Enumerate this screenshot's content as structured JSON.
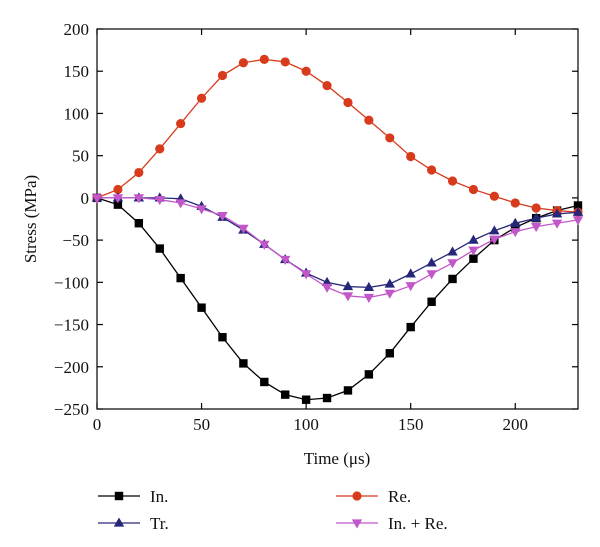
{
  "chart_data": {
    "type": "line",
    "xlabel": "Time (μs)",
    "ylabel": "Stress (MPa)",
    "xlim": [
      0,
      230
    ],
    "ylim": [
      -250,
      200
    ],
    "xticks": [
      0,
      50,
      100,
      150,
      200
    ],
    "yticks": [
      200,
      150,
      100,
      50,
      0,
      -50,
      -100,
      -150,
      -200,
      -250
    ],
    "grid": false,
    "legend_position": "bottom",
    "series": [
      {
        "name": "In.",
        "color": "#000000",
        "marker": "square",
        "x": [
          0,
          10,
          20,
          30,
          40,
          50,
          60,
          70,
          80,
          90,
          100,
          110,
          120,
          130,
          140,
          150,
          160,
          170,
          180,
          190,
          200,
          210,
          220,
          230
        ],
        "y": [
          0,
          -8,
          -30,
          -60,
          -95,
          -130,
          -165,
          -196,
          -218,
          -233,
          -239,
          -237,
          -228,
          -209,
          -184,
          -153,
          -123,
          -96,
          -72,
          -50,
          -35,
          -24,
          -15,
          -9
        ]
      },
      {
        "name": "Re.",
        "color": "#d83a1c",
        "marker": "circle",
        "x": [
          0,
          10,
          20,
          30,
          40,
          50,
          60,
          70,
          80,
          90,
          100,
          110,
          120,
          130,
          140,
          150,
          160,
          170,
          180,
          190,
          200,
          210,
          220,
          230
        ],
        "y": [
          0,
          10,
          30,
          58,
          88,
          118,
          145,
          160,
          164,
          161,
          150,
          133,
          113,
          92,
          71,
          49,
          33,
          20,
          10,
          2,
          -6,
          -12,
          -15,
          -17
        ]
      },
      {
        "name": "Tr.",
        "color": "#27277a",
        "marker": "triangle-up",
        "x": [
          0,
          10,
          20,
          30,
          40,
          50,
          60,
          70,
          80,
          90,
          100,
          110,
          120,
          130,
          140,
          150,
          160,
          170,
          180,
          190,
          200,
          210,
          220,
          230
        ],
        "y": [
          0,
          0,
          0,
          0,
          -1,
          -10,
          -23,
          -38,
          -55,
          -73,
          -89,
          -100,
          -105,
          -106,
          -102,
          -90,
          -77,
          -64,
          -50,
          -39,
          -30,
          -24,
          -19,
          -17
        ]
      },
      {
        "name": "In. + Re.",
        "color": "#c257c9",
        "marker": "triangle-down",
        "x": [
          0,
          10,
          20,
          30,
          40,
          50,
          60,
          70,
          80,
          90,
          100,
          110,
          120,
          130,
          140,
          150,
          160,
          170,
          180,
          190,
          200,
          210,
          220,
          230
        ],
        "y": [
          0,
          0,
          0,
          -2,
          -6,
          -13,
          -21,
          -36,
          -55,
          -73,
          -90,
          -106,
          -116,
          -118,
          -113,
          -104,
          -90,
          -77,
          -62,
          -49,
          -40,
          -34,
          -30,
          -26
        ]
      }
    ],
    "legend_order": [
      0,
      2,
      1,
      3
    ]
  }
}
